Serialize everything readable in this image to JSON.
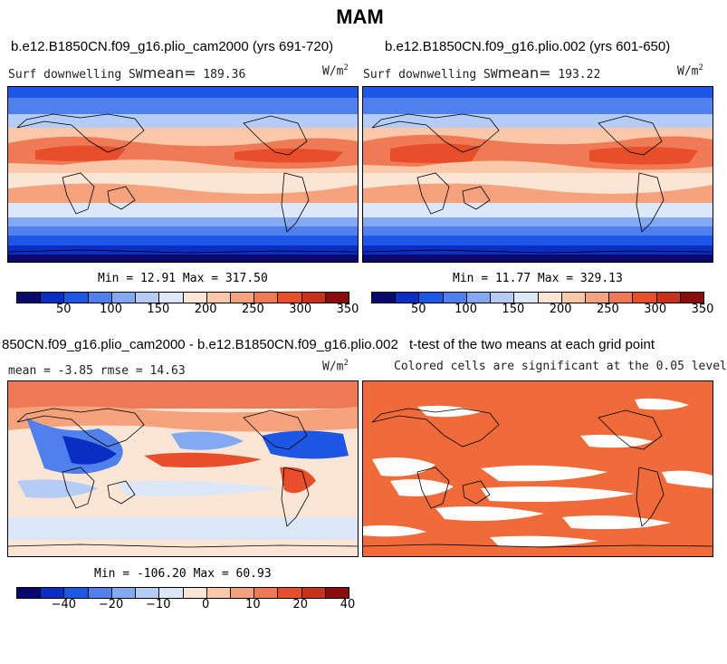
{
  "figure": {
    "title": "MAM"
  },
  "panels": {
    "top_left": {
      "title": "b.e12.B1850CN.f09_g16.plio_cam2000 (yrs 691-720)",
      "variable": "Surf downwelling SW",
      "mean_label": "mean=",
      "mean_value": "189.36",
      "units": "W/m",
      "units_exp": "2",
      "minmax": "Min =  12.91 Max = 317.50"
    },
    "top_right": {
      "title": "b.e12.B1850CN.f09_g16.plio.002 (yrs 601-650)",
      "variable": "Surf downwelling SW",
      "mean_label": "mean=",
      "mean_value": "193.22",
      "units": "W/m",
      "units_exp": "2",
      "minmax": "Min =  11.77 Max = 329.13"
    },
    "bottom_left": {
      "title": "850CN.f09_g16.plio_cam2000 - b.e12.B1850CN.f09_g16.plio.002",
      "stats": "mean =  -3.85    rmse =  14.63",
      "units": "W/m",
      "units_exp": "2",
      "minmax": "Min = -106.20 Max =  60.93"
    },
    "bottom_right": {
      "title": "t-test of the two means at each grid point",
      "subtitle": "Colored cells are significant at the 0.05 level",
      "fill_color": "#f06a3a"
    }
  },
  "colorbars": {
    "absolute": {
      "colors": [
        "#08086f",
        "#0a2ec4",
        "#1e56e6",
        "#4f80ee",
        "#83a9f2",
        "#b4ccf6",
        "#dce8fa",
        "#fbe6d6",
        "#fbc8aa",
        "#f6a27c",
        "#f07a55",
        "#e84e2a",
        "#c8321c",
        "#8b0c0c"
      ],
      "tick_labels": [
        "50",
        "100",
        "150",
        "200",
        "250",
        "300",
        "350"
      ]
    },
    "difference": {
      "colors": [
        "#08086f",
        "#0a2ec4",
        "#1e56e6",
        "#4f80ee",
        "#83a9f2",
        "#b4ccf6",
        "#dce8fa",
        "#fbe6d6",
        "#fbc8aa",
        "#f6a27c",
        "#f07a55",
        "#e84e2a",
        "#c8321c",
        "#8b0c0c"
      ],
      "tick_labels": [
        "-40",
        "-20",
        "-10",
        "0",
        "10",
        "20",
        "40"
      ]
    }
  }
}
